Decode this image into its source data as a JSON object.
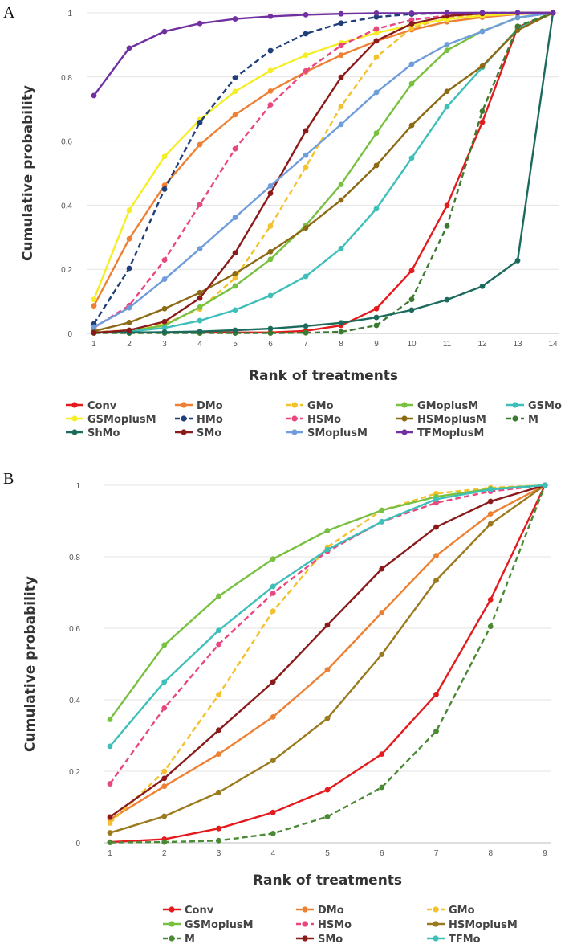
{
  "chart_data": [
    {
      "panel": "A",
      "type": "line",
      "xlabel": "Rank of treatments",
      "ylabel": "Cumulative probability",
      "x": [
        1,
        2,
        3,
        4,
        5,
        6,
        7,
        8,
        9,
        10,
        11,
        12,
        13,
        14
      ],
      "xlim": [
        1,
        14
      ],
      "ylim": [
        0,
        1
      ],
      "yticks": [
        "0",
        "0.2",
        "0.4",
        "0.6",
        "0.8",
        "1"
      ],
      "xticks": [
        "1",
        "2",
        "3",
        "4",
        "5",
        "6",
        "7",
        "8",
        "9",
        "10",
        "11",
        "12",
        "13",
        "14"
      ],
      "grid": "horizontal",
      "legend": "bottom",
      "series": [
        {
          "name": "Conv",
          "color": "#e41a1c",
          "dash": false,
          "values": [
            0.003,
            0.003,
            0.003,
            0.003,
            0.003,
            0.003,
            0.008,
            0.025,
            0.077,
            0.196,
            0.399,
            0.659,
            0.955,
            1
          ]
        },
        {
          "name": "DMo",
          "color": "#ee8033",
          "dash": false,
          "values": [
            0.086,
            0.295,
            0.462,
            0.589,
            0.682,
            0.756,
            0.816,
            0.868,
            0.912,
            0.947,
            0.972,
            0.986,
            0.996,
            1
          ]
        },
        {
          "name": "GMo",
          "color": "#f3c12b",
          "dash": true,
          "values": [
            0.004,
            0.01,
            0.03,
            0.076,
            0.173,
            0.335,
            0.519,
            0.708,
            0.862,
            0.953,
            0.985,
            0.995,
            0.999,
            1
          ]
        },
        {
          "name": "GMoplusM",
          "color": "#77c040",
          "dash": false,
          "values": [
            0.003,
            0.007,
            0.025,
            0.082,
            0.148,
            0.231,
            0.337,
            0.465,
            0.625,
            0.779,
            0.883,
            0.943,
            0.985,
            1
          ]
        },
        {
          "name": "GSMo",
          "color": "#3ebfba",
          "dash": false,
          "values": [
            0.002,
            0.006,
            0.017,
            0.04,
            0.073,
            0.118,
            0.178,
            0.265,
            0.389,
            0.547,
            0.707,
            0.83,
            0.951,
            1
          ]
        },
        {
          "name": "GSMoplusM",
          "color": "#f5ee24",
          "dash": false,
          "values": [
            0.106,
            0.384,
            0.552,
            0.667,
            0.755,
            0.82,
            0.868,
            0.906,
            0.937,
            0.962,
            0.98,
            0.991,
            0.997,
            1
          ]
        },
        {
          "name": "HMo",
          "color": "#1f3e7a",
          "dash": true,
          "values": [
            0.03,
            0.203,
            0.45,
            0.658,
            0.798,
            0.882,
            0.935,
            0.968,
            0.987,
            0.996,
            0.999,
            1,
            1,
            1
          ]
        },
        {
          "name": "HSMo",
          "color": "#e8487f",
          "dash": true,
          "values": [
            0.018,
            0.087,
            0.229,
            0.402,
            0.576,
            0.713,
            0.819,
            0.898,
            0.95,
            0.978,
            0.992,
            0.998,
            1,
            1
          ]
        },
        {
          "name": "HSMoplusM",
          "color": "#8c6913",
          "dash": false,
          "values": [
            0.007,
            0.034,
            0.077,
            0.127,
            0.187,
            0.255,
            0.329,
            0.416,
            0.524,
            0.649,
            0.755,
            0.834,
            0.946,
            1
          ]
        },
        {
          "name": "M",
          "color": "#3d7a31",
          "dash": true,
          "values": [
            0.001,
            0.001,
            0.001,
            0.001,
            0.001,
            0.001,
            0.002,
            0.005,
            0.025,
            0.106,
            0.335,
            0.693,
            0.958,
            1
          ]
        },
        {
          "name": "ShMo",
          "color": "#1a6b5c",
          "dash": false,
          "values": [
            0.003,
            0.003,
            0.004,
            0.006,
            0.01,
            0.015,
            0.023,
            0.033,
            0.05,
            0.073,
            0.105,
            0.147,
            0.227,
            1
          ]
        },
        {
          "name": "SMo",
          "color": "#8b1a1a",
          "dash": false,
          "values": [
            0.002,
            0.01,
            0.037,
            0.11,
            0.251,
            0.437,
            0.632,
            0.799,
            0.913,
            0.966,
            0.99,
            0.998,
            1,
            1
          ]
        },
        {
          "name": "SMoplusM",
          "color": "#6f9ddc",
          "dash": false,
          "values": [
            0.02,
            0.08,
            0.169,
            0.264,
            0.362,
            0.46,
            0.556,
            0.652,
            0.752,
            0.84,
            0.901,
            0.942,
            0.985,
            1
          ]
        },
        {
          "name": "TFMoplusM",
          "color": "#7030a0",
          "dash": false,
          "values": [
            0.742,
            0.89,
            0.942,
            0.967,
            0.981,
            0.989,
            0.994,
            0.997,
            0.999,
            0.999,
            1,
            1,
            1,
            1
          ]
        }
      ]
    },
    {
      "panel": "B",
      "type": "line",
      "xlabel": "Rank of treatments",
      "ylabel": "Cumulative probability",
      "x": [
        1,
        2,
        3,
        4,
        5,
        6,
        7,
        8,
        9
      ],
      "xlim": [
        1,
        9
      ],
      "ylim": [
        0,
        1
      ],
      "yticks": [
        "0",
        "0.2",
        "0.4",
        "0.6",
        "0.8",
        "1"
      ],
      "xticks": [
        "1",
        "2",
        "3",
        "4",
        "5",
        "6",
        "7",
        "8",
        "9"
      ],
      "grid": "horizontal",
      "legend": "bottom",
      "series": [
        {
          "name": "Conv",
          "color": "#e41a1c",
          "dash": false,
          "values": [
            0.002,
            0.01,
            0.04,
            0.085,
            0.148,
            0.248,
            0.415,
            0.68,
            1
          ]
        },
        {
          "name": "DMo",
          "color": "#ee8033",
          "dash": false,
          "values": [
            0.065,
            0.158,
            0.248,
            0.352,
            0.484,
            0.644,
            0.803,
            0.92,
            1
          ]
        },
        {
          "name": "GMo",
          "color": "#f3c12b",
          "dash": true,
          "values": [
            0.055,
            0.2,
            0.414,
            0.648,
            0.827,
            0.93,
            0.977,
            0.993,
            1
          ]
        },
        {
          "name": "GSMoplusM",
          "color": "#77c040",
          "dash": false,
          "values": [
            0.345,
            0.553,
            0.69,
            0.794,
            0.873,
            0.93,
            0.968,
            0.99,
            1
          ]
        },
        {
          "name": "HSMo",
          "color": "#e8487f",
          "dash": true,
          "values": [
            0.165,
            0.377,
            0.555,
            0.698,
            0.815,
            0.898,
            0.951,
            0.983,
            1
          ]
        },
        {
          "name": "HSMoplusM",
          "color": "#9a7a1c",
          "dash": false,
          "values": [
            0.028,
            0.074,
            0.141,
            0.23,
            0.348,
            0.527,
            0.734,
            0.892,
            1
          ]
        },
        {
          "name": "M",
          "color": "#4a8a36",
          "dash": true,
          "values": [
            0.001,
            0.002,
            0.006,
            0.026,
            0.073,
            0.155,
            0.312,
            0.605,
            1
          ]
        },
        {
          "name": "SMo",
          "color": "#8b1a1a",
          "dash": false,
          "values": [
            0.072,
            0.18,
            0.315,
            0.45,
            0.609,
            0.766,
            0.883,
            0.955,
            1
          ]
        },
        {
          "name": "TFMo",
          "color": "#3ebfba",
          "dash": false,
          "values": [
            0.27,
            0.45,
            0.594,
            0.717,
            0.82,
            0.898,
            0.961,
            0.988,
            1
          ]
        }
      ]
    }
  ]
}
